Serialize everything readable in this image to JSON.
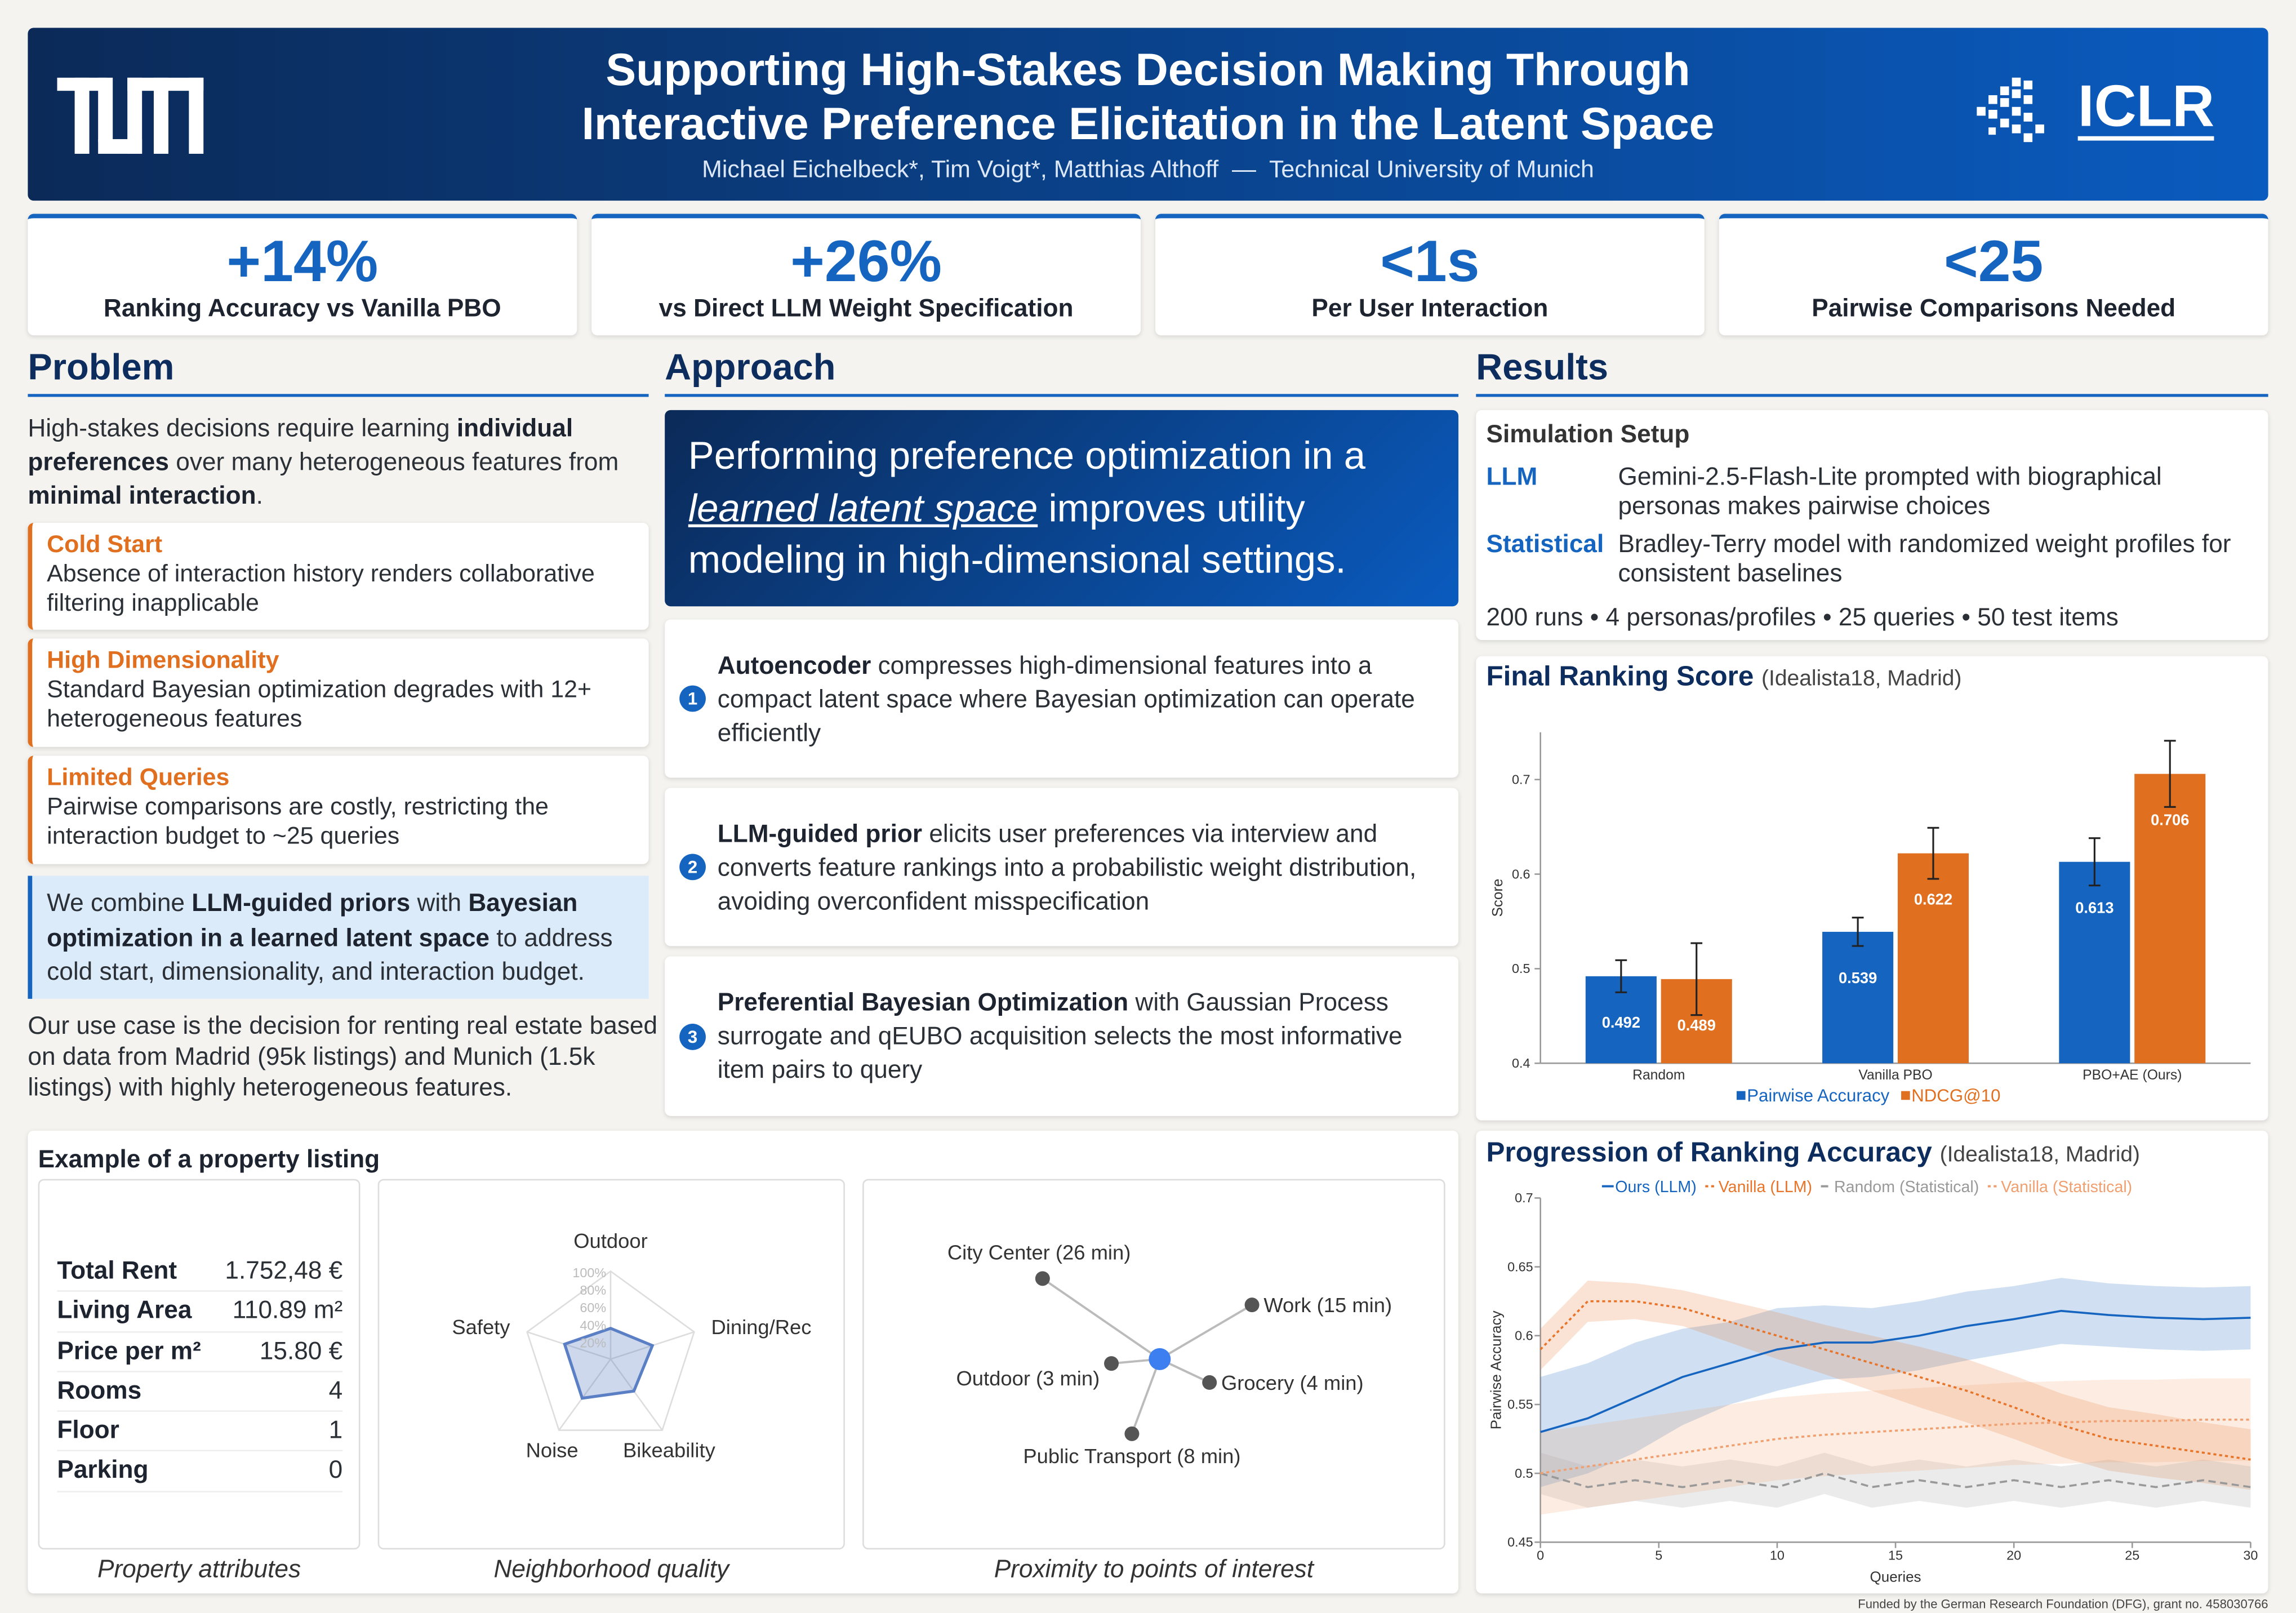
{
  "header": {
    "title_lines": [
      "Supporting High-Stakes Decision Making Through",
      "Interactive Preference Elicitation in the Latent Space"
    ],
    "authors": "Michael Eichelbeck*, Tim Voigt*, Matthias Althoff  —  Technical University of Munich",
    "logo_right": "ICLR"
  },
  "stats": [
    {
      "value": "+14%",
      "label": "Ranking Accuracy vs Vanilla PBO"
    },
    {
      "value": "+26%",
      "label": "vs Direct LLM Weight Specification"
    },
    {
      "value": "<1s",
      "label": "Per User Interaction"
    },
    {
      "value": "<25",
      "label": "Pairwise Comparisons Needed"
    }
  ],
  "problem": {
    "heading": "Problem",
    "intro": [
      "High-stakes decisions require learning ",
      {
        "text": "individual preferences",
        "style": "bold"
      },
      " over many heterogeneous features from ",
      {
        "text": "minimal interaction",
        "style": "bold"
      },
      "."
    ],
    "challenges": [
      {
        "title": "Cold Start",
        "text": "Absence of interaction history renders collaborative filtering inapplicable"
      },
      {
        "title": "High Dimensionality",
        "text": "Standard Bayesian optimization degrades with 12+ heterogeneous features"
      },
      {
        "title": "Limited Queries",
        "text": "Pairwise comparisons are costly, restricting the interaction budget to ~25 queries"
      }
    ],
    "highlight": [
      "We combine ",
      {
        "text": "LLM-guided priors",
        "style": "bold"
      },
      " with ",
      {
        "text": "Bayesian optimization in a learned latent space",
        "style": "bold"
      },
      " to address cold start, dimensionality, and interaction budget."
    ],
    "use_case": "Our use case is the decision for renting real estate based on data from Madrid (95k listings) and Munich (1.5k listings) with highly heterogeneous features."
  },
  "approach": {
    "heading": "Approach",
    "banner": [
      "Performing preference optimization in a ",
      {
        "text": "learned latent space",
        "style": "emph"
      },
      " improves utility modeling in high-dimensional settings."
    ],
    "steps": [
      {
        "number": "1",
        "text": [
          {
            "text": "Autoencoder",
            "style": "bold"
          },
          " compresses high-dimensional features into a compact latent space where Bayesian optimization can operate efficiently"
        ]
      },
      {
        "number": "2",
        "text": [
          {
            "text": "LLM-guided prior",
            "style": "bold"
          },
          " elicits user preferences via interview and converts feature rankings into a probabilistic weight distribution, avoiding overconfident misspecification"
        ]
      },
      {
        "number": "3",
        "text": [
          {
            "text": "Preferential Bayesian Optimization",
            "style": "bold"
          },
          " with Gaussian Process surrogate and qEUBO acquisition selects the most informative item pairs to query"
        ]
      }
    ]
  },
  "results": {
    "heading": "Results",
    "setup": {
      "title": "Simulation Setup",
      "rows": [
        {
          "label": "LLM",
          "text": "Gemini-2.5-Flash-Lite prompted with biographical personas makes pairwise choices"
        },
        {
          "label": "Statistical",
          "text": "Bradley-Terry model with randomized weight profiles for consistent baselines"
        }
      ],
      "summary": "200 runs • 4 personas/profiles • 25 queries • 50 test items"
    }
  },
  "listing": {
    "title": "Example of a property listing",
    "attributes": {
      "rows": [
        [
          "Total Rent",
          "1.752,48 €"
        ],
        [
          "Living Area",
          "110.89 m²"
        ],
        [
          "Price per m²",
          "15.80 €"
        ],
        [
          "Rooms",
          "4"
        ],
        [
          "Floor",
          "1"
        ],
        [
          "Parking",
          "0"
        ]
      ],
      "caption": "Property attributes"
    },
    "neighborhood_caption": "Neighborhood quality",
    "proximity": {
      "points": [
        "City Center (26 min)",
        "Work (15 min)",
        "Outdoor (3 min)",
        "Grocery (4 min)",
        "Public Transport (8 min)"
      ],
      "caption": "Proximity to points of interest"
    }
  },
  "chart_data": [
    {
      "type": "bar",
      "title": "Final Ranking Score",
      "subtitle": "(Idealista18, Madrid)",
      "ylabel": "Score",
      "categories": [
        "Random",
        "Vanilla PBO",
        "PBO+AE (Ours)"
      ],
      "series": [
        {
          "name": "Pairwise Accuracy",
          "color": "#1565c0",
          "values": [
            0.492,
            0.539,
            0.613
          ],
          "errors": [
            0.017,
            0.015,
            0.025
          ]
        },
        {
          "name": "NDCG@10",
          "color": "#e07020",
          "values": [
            0.489,
            0.622,
            0.706
          ],
          "errors": [
            0.038,
            0.027,
            0.035
          ]
        }
      ],
      "ylim": [
        0.4,
        0.75
      ],
      "yticks": [
        0.4,
        0.5,
        0.6,
        0.7
      ],
      "grid": false
    },
    {
      "type": "line",
      "title": "Progression of Ranking Accuracy",
      "subtitle": "(Idealista18, Madrid)",
      "xlabel": "Queries",
      "ylabel": "Pairwise Accuracy",
      "x": [
        0,
        2,
        4,
        6,
        8,
        10,
        12,
        14,
        16,
        18,
        20,
        22,
        24,
        26,
        28,
        30
      ],
      "series": [
        {
          "name": "Ours (LLM)",
          "color": "#1565c0",
          "dash": "solid",
          "values": [
            0.53,
            0.54,
            0.555,
            0.57,
            0.58,
            0.59,
            0.595,
            0.595,
            0.6,
            0.607,
            0.612,
            0.618,
            0.615,
            0.613,
            0.612,
            0.613
          ],
          "lower": [
            0.49,
            0.5,
            0.515,
            0.535,
            0.55,
            0.56,
            0.568,
            0.57,
            0.575,
            0.582,
            0.588,
            0.594,
            0.592,
            0.59,
            0.589,
            0.59
          ],
          "upper": [
            0.57,
            0.58,
            0.595,
            0.605,
            0.61,
            0.62,
            0.622,
            0.62,
            0.625,
            0.632,
            0.636,
            0.642,
            0.638,
            0.636,
            0.635,
            0.636
          ]
        },
        {
          "name": "Vanilla (LLM)",
          "color": "#e8742a",
          "dash": "dotted",
          "values": [
            0.59,
            0.625,
            0.625,
            0.62,
            0.61,
            0.6,
            0.59,
            0.58,
            0.57,
            0.56,
            0.548,
            0.535,
            0.525,
            0.52,
            0.515,
            0.51
          ],
          "lower": [
            0.575,
            0.61,
            0.612,
            0.607,
            0.595,
            0.583,
            0.572,
            0.56,
            0.548,
            0.537,
            0.525,
            0.512,
            0.502,
            0.497,
            0.493,
            0.488
          ],
          "upper": [
            0.605,
            0.64,
            0.638,
            0.633,
            0.625,
            0.617,
            0.608,
            0.6,
            0.592,
            0.583,
            0.571,
            0.558,
            0.548,
            0.543,
            0.537,
            0.532
          ]
        },
        {
          "name": "Random (Statistical)",
          "color": "#999999",
          "dash": "dashed",
          "values": [
            0.5,
            0.49,
            0.495,
            0.49,
            0.495,
            0.49,
            0.5,
            0.49,
            0.495,
            0.49,
            0.495,
            0.49,
            0.495,
            0.49,
            0.495,
            0.49
          ],
          "lower": [
            0.485,
            0.475,
            0.48,
            0.475,
            0.48,
            0.475,
            0.485,
            0.475,
            0.48,
            0.475,
            0.48,
            0.475,
            0.48,
            0.475,
            0.48,
            0.475
          ],
          "upper": [
            0.515,
            0.505,
            0.51,
            0.505,
            0.51,
            0.505,
            0.515,
            0.505,
            0.51,
            0.505,
            0.51,
            0.505,
            0.51,
            0.505,
            0.51,
            0.505
          ]
        },
        {
          "name": "Vanilla (Statistical)",
          "color": "#f0a070",
          "dash": "dotted",
          "values": [
            0.5,
            0.505,
            0.51,
            0.515,
            0.52,
            0.525,
            0.528,
            0.53,
            0.532,
            0.534,
            0.536,
            0.537,
            0.538,
            0.538,
            0.539,
            0.539
          ],
          "lower": [
            0.47,
            0.475,
            0.48,
            0.485,
            0.49,
            0.495,
            0.498,
            0.5,
            0.502,
            0.504,
            0.506,
            0.507,
            0.508,
            0.508,
            0.509,
            0.509
          ],
          "upper": [
            0.53,
            0.535,
            0.54,
            0.545,
            0.55,
            0.555,
            0.558,
            0.56,
            0.562,
            0.564,
            0.566,
            0.567,
            0.568,
            0.568,
            0.569,
            0.569
          ]
        }
      ],
      "xlim": [
        0,
        30
      ],
      "xticks": [
        0,
        5,
        10,
        15,
        20,
        25,
        30
      ],
      "ylim": [
        0.45,
        0.7
      ],
      "yticks": [
        0.45,
        0.5,
        0.55,
        0.6,
        0.65,
        0.7
      ],
      "grid": false
    },
    {
      "type": "radar",
      "categories": [
        "Outdoor",
        "Dining/Rec",
        "Bikeability",
        "Noise",
        "Safety"
      ],
      "values": [
        35,
        50,
        45,
        55,
        55
      ],
      "color": "#5b7fc4",
      "rlim": [
        0,
        100
      ],
      "rticks": [
        {
          "value": 20,
          "label": "20%"
        },
        {
          "value": 40,
          "label": "40%"
        },
        {
          "value": 60,
          "label": "60%"
        },
        {
          "value": 80,
          "label": "80%"
        },
        {
          "value": 100,
          "label": "100%"
        }
      ]
    }
  ],
  "footer": "Funded by the German Research Foundation (DFG), grant no. 458030766"
}
